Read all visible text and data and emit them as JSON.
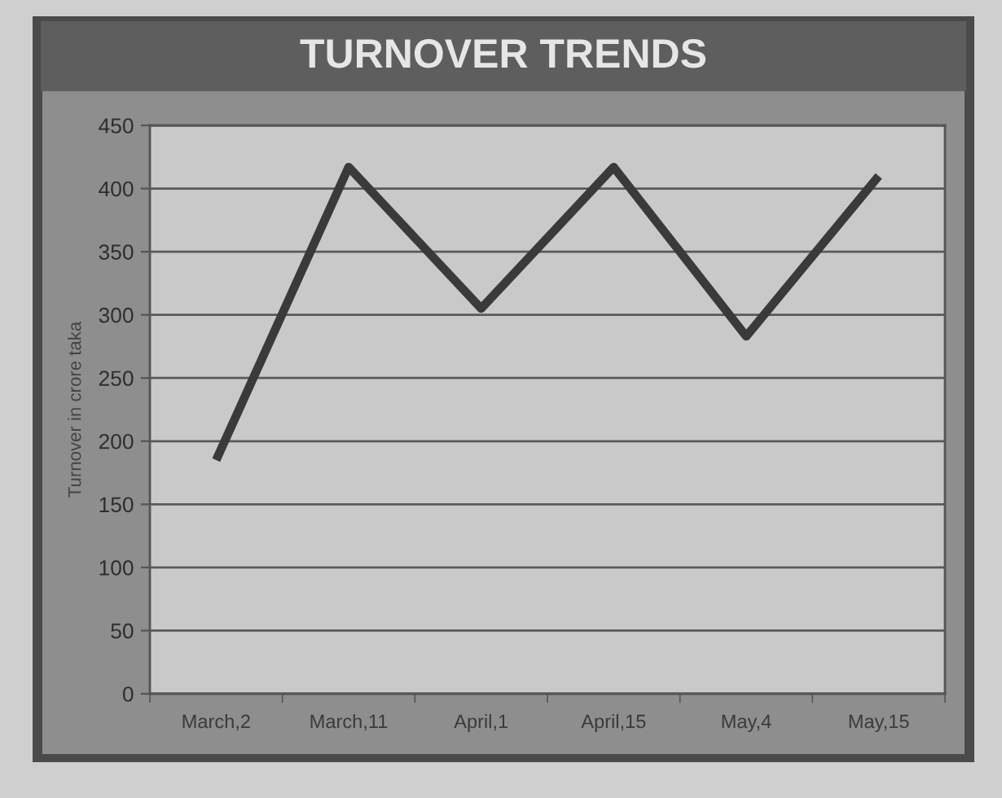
{
  "chart_data": {
    "type": "line",
    "title": "TURNOVER TRENDS",
    "ylabel": "Turnover in crore taka",
    "categories": [
      "March,2",
      "March,11",
      "April,1",
      "April,15",
      "May,4",
      "May,15"
    ],
    "series": [
      {
        "color": "#3a3a3a",
        "values": [
          185,
          417,
          305,
          417,
          283,
          410
        ]
      }
    ],
    "ylim": [
      0,
      450
    ],
    "yticks": [
      0,
      50,
      100,
      150,
      200,
      250,
      300,
      350,
      400,
      450
    ],
    "grid": "y",
    "marker": "none",
    "line_style": "solid"
  }
}
